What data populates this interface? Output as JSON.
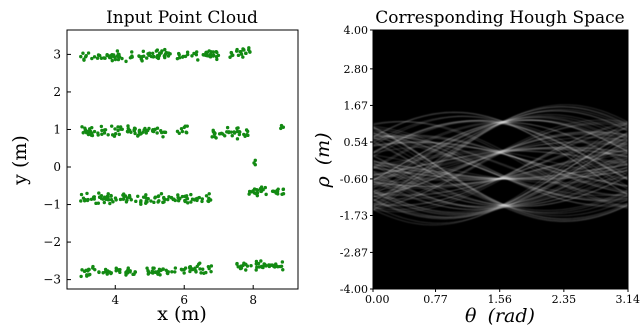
{
  "chart_data": [
    {
      "type": "scatter",
      "title": "Input Point Cloud",
      "xlabel": "x (m)",
      "ylabel": "y (m)",
      "xlim": [
        2.6,
        9.3
      ],
      "ylim": [
        -3.25,
        3.65
      ],
      "xticks": [
        4,
        6,
        8
      ],
      "yticks": [
        3,
        2,
        1,
        0,
        -1,
        -2,
        -3
      ],
      "xtick_labels": [
        "4",
        "6",
        "8"
      ],
      "ytick_labels": [
        "3",
        "2",
        "1",
        "0",
        "−1",
        "−2",
        "−3"
      ],
      "grid": false,
      "color": "#138a13",
      "series": [
        {
          "segments": [
            {
              "x": [
                3.0,
                4.2
              ],
              "y": 2.95
            },
            {
              "x": [
                4.2,
                5.6
              ],
              "y": 2.97
            },
            {
              "x": [
                5.8,
                7.0
              ],
              "y": 3.0
            },
            {
              "x": [
                7.3,
                8.0
              ],
              "y": 3.05
            }
          ]
        },
        {
          "segments": [
            {
              "x": [
                3.0,
                5.5
              ],
              "y": 0.95
            },
            {
              "x": [
                5.8,
                6.1
              ],
              "y": 1.0
            },
            {
              "x": [
                6.8,
                7.9
              ],
              "y": 0.9
            },
            {
              "x": [
                8.8,
                8.9
              ],
              "y": 1.05
            }
          ]
        },
        {
          "segments": [
            {
              "x": [
                3.0,
                6.8
              ],
              "y": -0.85
            },
            {
              "x": [
                7.8,
                8.9
              ],
              "y": -0.65
            },
            {
              "x": [
                8.0,
                8.1
              ],
              "y": 0.1
            }
          ]
        },
        {
          "segments": [
            {
              "x": [
                3.0,
                4.6
              ],
              "y": -2.8
            },
            {
              "x": [
                4.8,
                5.8
              ],
              "y": -2.8
            },
            {
              "x": [
                5.9,
                6.8
              ],
              "y": -2.7
            },
            {
              "x": [
                7.5,
                8.9
              ],
              "y": -2.62
            }
          ]
        }
      ]
    },
    {
      "type": "heatmap",
      "title": "Corresponding Hough Space",
      "xlabel_symbol": "θ",
      "xlabel_unit": "(rad)",
      "ylabel_symbol": "ρ",
      "ylabel_unit": "(m)",
      "xlim": [
        0.0,
        3.14
      ],
      "ylim": [
        -4.0,
        4.0
      ],
      "xticks": [
        0.0,
        0.77,
        1.56,
        2.35,
        3.14
      ],
      "xtick_labels": [
        "0.00",
        "0.77",
        "1.56",
        "2.35",
        "3.14"
      ],
      "yticks": [
        4.0,
        2.8,
        1.67,
        0.54,
        -0.6,
        -1.73,
        -2.87,
        -4.0
      ],
      "ytick_labels": [
        "4.00",
        "2.80",
        "1.67",
        "0.54",
        "-0.60",
        "-1.73",
        "-2.87",
        "-4.00"
      ],
      "colormap": "gray"
    }
  ]
}
